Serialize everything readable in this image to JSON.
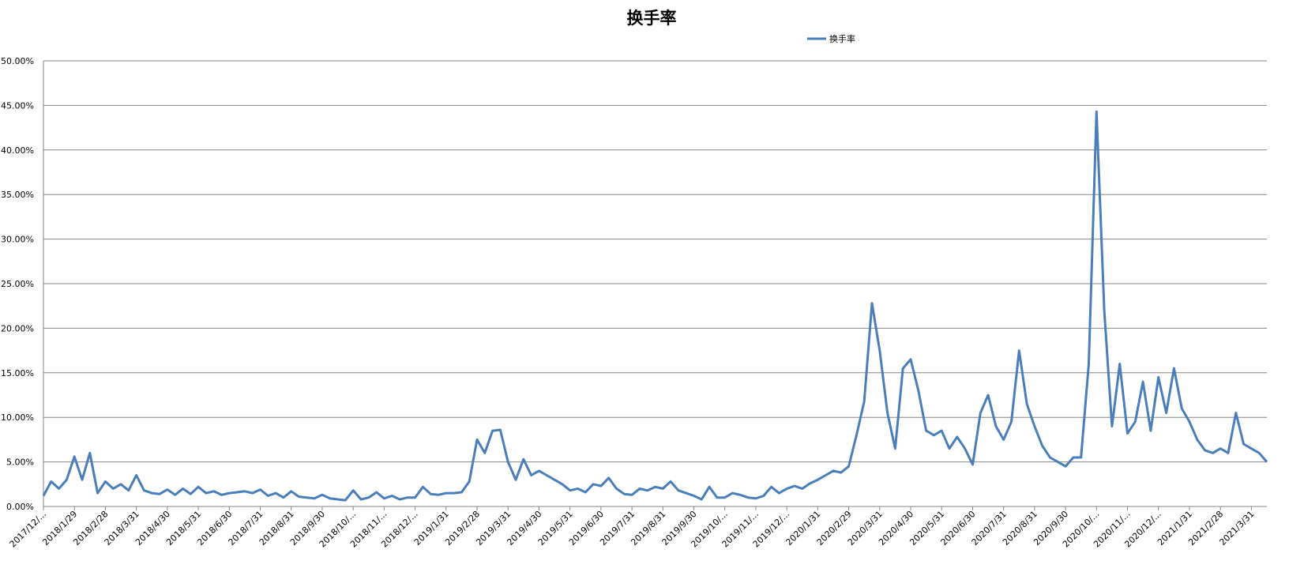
{
  "chart_data": {
    "type": "line",
    "title": "换手率",
    "categories": [
      "2017/12/...",
      null,
      null,
      null,
      "2018/1/29",
      null,
      null,
      null,
      "2018/2/28",
      null,
      null,
      null,
      "2018/3/31",
      null,
      null,
      null,
      "2018/4/30",
      null,
      null,
      null,
      "2018/5/31",
      null,
      null,
      null,
      "2018/6/30",
      null,
      null,
      null,
      "2018/7/31",
      null,
      null,
      null,
      "2018/8/31",
      null,
      null,
      null,
      "2018/9/30",
      null,
      null,
      null,
      "2018/10/...",
      null,
      null,
      null,
      "2018/11/...",
      null,
      null,
      null,
      "2018/12/...",
      null,
      null,
      null,
      "2019/1/31",
      null,
      null,
      null,
      "2019/2/28",
      null,
      null,
      null,
      "2019/3/31",
      null,
      null,
      null,
      "2019/4/30",
      null,
      null,
      null,
      "2019/5/31",
      null,
      null,
      null,
      "2019/6/30",
      null,
      null,
      null,
      "2019/7/31",
      null,
      null,
      null,
      "2019/8/31",
      null,
      null,
      null,
      "2019/9/30",
      null,
      null,
      null,
      "2019/10/...",
      null,
      null,
      null,
      "2019/11/...",
      null,
      null,
      null,
      "2019/12/...",
      null,
      null,
      null,
      "2020/1/31",
      null,
      null,
      null,
      "2020/2/29",
      null,
      null,
      null,
      "2020/3/31",
      null,
      null,
      null,
      "2020/4/30",
      null,
      null,
      null,
      "2020/5/31",
      null,
      null,
      null,
      "2020/6/30",
      null,
      null,
      null,
      "2020/7/31",
      null,
      null,
      null,
      "2020/8/31",
      null,
      null,
      null,
      "2020/9/30",
      null,
      null,
      null,
      "2020/10/...",
      null,
      null,
      null,
      "2020/11/...",
      null,
      null,
      null,
      "2020/12/...",
      null,
      null,
      null,
      "2021/1/31",
      null,
      null,
      null,
      "2021/2/28",
      null,
      null,
      null,
      "2021/3/31",
      null,
      null
    ],
    "series": [
      {
        "name": "换手率",
        "color": "#4a7ebb",
        "values": [
          1.2,
          2.8,
          2.0,
          3.0,
          5.6,
          3.0,
          6.0,
          1.5,
          2.8,
          2.0,
          2.5,
          1.8,
          3.5,
          1.8,
          1.5,
          1.4,
          1.9,
          1.3,
          2.0,
          1.4,
          2.2,
          1.5,
          1.7,
          1.3,
          1.5,
          1.6,
          1.7,
          1.5,
          1.9,
          1.2,
          1.5,
          1.0,
          1.7,
          1.1,
          1.0,
          0.9,
          1.3,
          0.9,
          0.8,
          0.7,
          1.8,
          0.8,
          1.0,
          1.6,
          0.9,
          1.2,
          0.8,
          1.0,
          1.0,
          2.2,
          1.4,
          1.3,
          1.5,
          1.5,
          1.6,
          2.8,
          7.5,
          6.0,
          8.5,
          8.6,
          5.0,
          3.0,
          5.3,
          3.5,
          4.0,
          3.5,
          3.0,
          2.5,
          1.8,
          2.0,
          1.6,
          2.5,
          2.3,
          3.2,
          2.0,
          1.4,
          1.3,
          2.0,
          1.8,
          2.2,
          2.0,
          2.8,
          1.8,
          1.5,
          1.2,
          0.8,
          2.2,
          1.0,
          1.0,
          1.5,
          1.3,
          1.0,
          0.9,
          1.2,
          2.2,
          1.5,
          2.0,
          2.3,
          2.0,
          2.6,
          3.0,
          3.5,
          4.0,
          3.8,
          4.5,
          8.0,
          11.8,
          22.8,
          17.5,
          10.5,
          6.5,
          15.5,
          16.5,
          13.0,
          8.5,
          8.0,
          8.5,
          6.5,
          7.8,
          6.5,
          4.7,
          10.5,
          12.5,
          9.0,
          7.5,
          9.5,
          17.5,
          11.5,
          9.0,
          6.8,
          5.5,
          5.0,
          4.5,
          5.5,
          5.5,
          16.0,
          44.3,
          22.0,
          9.0,
          16.0,
          8.2,
          9.5,
          14.0,
          8.5,
          14.5,
          10.5,
          15.5,
          11.0,
          9.5,
          7.5,
          6.3,
          6.0,
          6.5,
          6.0,
          10.5,
          7.0,
          6.5,
          6.0,
          5.0
        ]
      }
    ],
    "ylim": [
      0,
      50
    ],
    "yticks": [
      {
        "value": 0,
        "label": "0.00%"
      },
      {
        "value": 5,
        "label": "5.00%"
      },
      {
        "value": 10,
        "label": "10.00%"
      },
      {
        "value": 15,
        "label": "15.00%"
      },
      {
        "value": 20,
        "label": "20.00%"
      },
      {
        "value": 25,
        "label": "25.00%"
      },
      {
        "value": 30,
        "label": "30.00%"
      },
      {
        "value": 35,
        "label": "35.00%"
      },
      {
        "value": 40,
        "label": "40.00%"
      },
      {
        "value": 45,
        "label": "45.00%"
      },
      {
        "value": 50,
        "label": "50.00%"
      }
    ],
    "grid": true,
    "legend": "top"
  }
}
